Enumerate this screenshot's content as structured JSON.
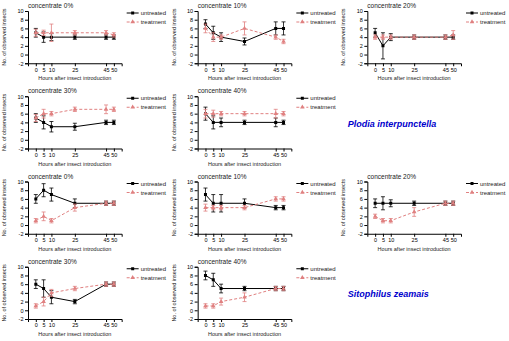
{
  "chart_data": [
    {
      "type": "line",
      "title": "concentrate 0%",
      "x_label": "Hours after insect introduction",
      "y_label": "No. of observed insects",
      "x": [
        0,
        5,
        10,
        25,
        45,
        50
      ],
      "xlim": [
        -5,
        55
      ],
      "xticks": [
        0,
        5,
        10,
        25,
        45,
        50
      ],
      "ylim": [
        -2,
        10
      ],
      "yticks": [
        -2,
        0,
        2,
        4,
        6,
        8,
        10
      ],
      "grid": false,
      "legend": "upper right",
      "series": [
        {
          "name": "untreated",
          "color": "#000000",
          "marker": "square",
          "line_style": "solid",
          "values": [
            5,
            4,
            4,
            4,
            4,
            4
          ],
          "errors": [
            1.0,
            1.2,
            0.8,
            0.5,
            0.5,
            0.5
          ]
        },
        {
          "name": "treatment",
          "color": "#e08080",
          "marker": "triangle",
          "line_style": "dashed",
          "values": [
            5,
            5,
            5,
            5,
            5,
            4.5
          ],
          "errors": [
            0.8,
            0.6,
            2.0,
            0.5,
            0.5,
            0.5
          ]
        }
      ]
    },
    {
      "type": "line",
      "title": "concentrate 10%",
      "x_label": "Hours after insect introduction",
      "y_label": "No. of observed insects",
      "x": [
        0,
        5,
        10,
        25,
        45,
        50
      ],
      "xlim": [
        -5,
        55
      ],
      "xticks": [
        0,
        5,
        10,
        25,
        45,
        50
      ],
      "ylim": [
        -2,
        10
      ],
      "yticks": [
        -2,
        0,
        2,
        4,
        6,
        8,
        10
      ],
      "grid": false,
      "legend": "upper right",
      "series": [
        {
          "name": "untreated",
          "color": "#000000",
          "marker": "square",
          "line_style": "solid",
          "values": [
            7,
            5,
            4,
            3,
            6,
            6
          ],
          "errors": [
            1.0,
            1.5,
            1.0,
            0.8,
            1.5,
            1.5
          ]
        },
        {
          "name": "treatment",
          "color": "#e08080",
          "marker": "triangle",
          "line_style": "dashed",
          "values": [
            6,
            4,
            4,
            6,
            4,
            3
          ],
          "errors": [
            1.0,
            1.0,
            0.5,
            1.5,
            0.5,
            0.5
          ]
        }
      ]
    },
    {
      "type": "line",
      "title": "concentrate 20%",
      "x_label": "Hours after insect introduction",
      "y_label": "No. of observed insects",
      "x": [
        0,
        5,
        10,
        25,
        45,
        50
      ],
      "xlim": [
        -5,
        55
      ],
      "xticks": [
        0,
        5,
        10,
        25,
        45,
        50
      ],
      "ylim": [
        -2,
        10
      ],
      "yticks": [
        -2,
        0,
        2,
        4,
        6,
        8,
        10
      ],
      "grid": false,
      "legend": "upper right",
      "series": [
        {
          "name": "untreated",
          "color": "#000000",
          "marker": "square",
          "line_style": "solid",
          "values": [
            5,
            2,
            4,
            4,
            4,
            4
          ],
          "errors": [
            1.0,
            3.0,
            0.8,
            0.5,
            0.5,
            0.5
          ]
        },
        {
          "name": "treatment",
          "color": "#e08080",
          "marker": "triangle",
          "line_style": "dashed",
          "values": [
            4,
            4,
            4,
            4,
            4,
            4.5
          ],
          "errors": [
            0.5,
            0.5,
            0.5,
            0.5,
            0.5,
            1.0
          ]
        }
      ]
    },
    {
      "type": "line",
      "title": "concentrate 30%",
      "x_label": "Hours after insect introduction",
      "y_label": "No. of observed insects",
      "x": [
        0,
        5,
        10,
        25,
        45,
        50
      ],
      "xlim": [
        -5,
        55
      ],
      "xticks": [
        0,
        5,
        10,
        25,
        45,
        50
      ],
      "ylim": [
        -2,
        10
      ],
      "yticks": [
        -2,
        0,
        2,
        4,
        6,
        8,
        10
      ],
      "grid": false,
      "legend": "upper right",
      "series": [
        {
          "name": "untreated",
          "color": "#000000",
          "marker": "square",
          "line_style": "solid",
          "values": [
            5,
            4,
            3,
            3,
            4,
            4
          ],
          "errors": [
            1.0,
            1.5,
            1.2,
            0.8,
            0.5,
            0.5
          ]
        },
        {
          "name": "treatment",
          "color": "#e08080",
          "marker": "triangle",
          "line_style": "dashed",
          "values": [
            5,
            6,
            6,
            7,
            7,
            7
          ],
          "errors": [
            0.8,
            1.0,
            0.5,
            0.5,
            1.0,
            0.5
          ]
        }
      ]
    },
    {
      "type": "line",
      "title": "concentrate 40%",
      "x_label": "Hours after insect introduction",
      "y_label": "No. of observed insects",
      "x": [
        0,
        5,
        10,
        25,
        45,
        50
      ],
      "xlim": [
        -5,
        55
      ],
      "xticks": [
        0,
        5,
        10,
        25,
        45,
        50
      ],
      "ylim": [
        -2,
        10
      ],
      "yticks": [
        -2,
        0,
        2,
        4,
        6,
        8,
        10
      ],
      "grid": false,
      "legend": "upper right",
      "series": [
        {
          "name": "untreated",
          "color": "#000000",
          "marker": "square",
          "line_style": "solid",
          "values": [
            6,
            4,
            4,
            4,
            4,
            4
          ],
          "errors": [
            1.5,
            1.5,
            1.0,
            0.5,
            1.0,
            0.5
          ]
        },
        {
          "name": "treatment",
          "color": "#e08080",
          "marker": "triangle",
          "line_style": "dashed",
          "values": [
            6,
            6,
            6,
            6,
            6,
            6
          ],
          "errors": [
            1.0,
            0.8,
            0.5,
            0.5,
            1.0,
            0.5
          ]
        }
      ],
      "annotations": [
        {
          "text": "Plodia interpunctella",
          "color": "#0000cc"
        }
      ]
    },
    {
      "type": "line",
      "title": "concentrate 0%",
      "x_label": "Hours after insect introduction",
      "y_label": "No. of observed insects",
      "x": [
        0,
        5,
        10,
        25,
        45,
        50
      ],
      "xlim": [
        -5,
        55
      ],
      "xticks": [
        0,
        5,
        10,
        25,
        45,
        50
      ],
      "ylim": [
        -2,
        10
      ],
      "yticks": [
        -2,
        0,
        2,
        4,
        6,
        8,
        10
      ],
      "grid": false,
      "legend": "upper right",
      "series": [
        {
          "name": "untreated",
          "color": "#000000",
          "marker": "square",
          "line_style": "solid",
          "values": [
            6,
            8,
            7,
            5,
            5,
            5
          ],
          "errors": [
            1.0,
            1.5,
            1.5,
            1.0,
            0.5,
            0.5
          ]
        },
        {
          "name": "treatment",
          "color": "#e08080",
          "marker": "triangle",
          "line_style": "dashed",
          "values": [
            1,
            2,
            1,
            4,
            5,
            5
          ],
          "errors": [
            0.5,
            1.0,
            0.5,
            0.8,
            0.5,
            0.5
          ]
        }
      ]
    },
    {
      "type": "line",
      "title": "concentrate 10%",
      "x_label": "Hours after insect introduction",
      "y_label": "No. of observed insects",
      "x": [
        0,
        5,
        10,
        25,
        45,
        50
      ],
      "xlim": [
        -5,
        55
      ],
      "xticks": [
        0,
        5,
        10,
        25,
        45,
        50
      ],
      "ylim": [
        -2,
        10
      ],
      "yticks": [
        -2,
        0,
        2,
        4,
        6,
        8,
        10
      ],
      "grid": false,
      "legend": "upper right",
      "series": [
        {
          "name": "untreated",
          "color": "#000000",
          "marker": "square",
          "line_style": "solid",
          "values": [
            7,
            5,
            5,
            5,
            4,
            4
          ],
          "errors": [
            1.5,
            2.0,
            2.0,
            1.0,
            0.5,
            0.5
          ]
        },
        {
          "name": "treatment",
          "color": "#e08080",
          "marker": "triangle",
          "line_style": "dashed",
          "values": [
            4,
            4,
            4,
            4,
            6,
            6
          ],
          "errors": [
            0.8,
            0.5,
            0.5,
            0.5,
            0.5,
            0.5
          ]
        }
      ]
    },
    {
      "type": "line",
      "title": "concentrate 20%",
      "x_label": "Hours after insect introduction",
      "y_label": "No. of observed insects",
      "x": [
        0,
        5,
        10,
        25,
        45,
        50
      ],
      "xlim": [
        -5,
        55
      ],
      "xticks": [
        0,
        5,
        10,
        25,
        45,
        50
      ],
      "ylim": [
        -2,
        10
      ],
      "yticks": [
        -2,
        0,
        2,
        4,
        6,
        8,
        10
      ],
      "grid": false,
      "legend": "upper right",
      "series": [
        {
          "name": "untreated",
          "color": "#000000",
          "marker": "square",
          "line_style": "solid",
          "values": [
            5,
            5,
            5,
            5,
            5,
            5
          ],
          "errors": [
            1.0,
            1.5,
            0.8,
            0.5,
            0.5,
            0.5
          ]
        },
        {
          "name": "treatment",
          "color": "#e08080",
          "marker": "triangle",
          "line_style": "dashed",
          "values": [
            2,
            1,
            1,
            3,
            5,
            5
          ],
          "errors": [
            0.5,
            0.5,
            0.5,
            1.0,
            0.5,
            0.5
          ]
        }
      ]
    },
    {
      "type": "line",
      "title": "concentrate 30%",
      "x_label": "Hours after insect introduction",
      "y_label": "No. of observed insects",
      "x": [
        0,
        5,
        10,
        25,
        45,
        50
      ],
      "xlim": [
        -5,
        55
      ],
      "xticks": [
        0,
        5,
        10,
        25,
        45,
        50
      ],
      "ylim": [
        -2,
        10
      ],
      "yticks": [
        -2,
        0,
        2,
        4,
        6,
        8,
        10
      ],
      "grid": false,
      "legend": "upper right",
      "series": [
        {
          "name": "untreated",
          "color": "#000000",
          "marker": "square",
          "line_style": "solid",
          "values": [
            6,
            5,
            3,
            2,
            6,
            6
          ],
          "errors": [
            1.0,
            2.0,
            1.5,
            0.5,
            0.5,
            0.5
          ]
        },
        {
          "name": "treatment",
          "color": "#e08080",
          "marker": "triangle",
          "line_style": "dashed",
          "values": [
            1,
            2,
            4,
            5,
            6,
            6
          ],
          "errors": [
            0.5,
            1.0,
            0.8,
            0.5,
            0.5,
            0.5
          ]
        }
      ]
    },
    {
      "type": "line",
      "title": "concentrate 40%",
      "x_label": "Hours after insect introduction",
      "y_label": "No. of observed insects",
      "x": [
        0,
        5,
        10,
        25,
        45,
        50
      ],
      "xlim": [
        -5,
        55
      ],
      "xticks": [
        0,
        5,
        10,
        25,
        45,
        50
      ],
      "ylim": [
        -2,
        10
      ],
      "yticks": [
        -2,
        0,
        2,
        4,
        6,
        8,
        10
      ],
      "grid": false,
      "legend": "upper right",
      "series": [
        {
          "name": "untreated",
          "color": "#000000",
          "marker": "square",
          "line_style": "solid",
          "values": [
            8,
            7,
            5,
            5,
            5,
            5
          ],
          "errors": [
            1.0,
            1.5,
            1.0,
            0.5,
            0.5,
            0.5
          ]
        },
        {
          "name": "treatment",
          "color": "#e08080",
          "marker": "triangle",
          "line_style": "dashed",
          "values": [
            1,
            1,
            2,
            3,
            5,
            5
          ],
          "errors": [
            0.5,
            0.5,
            0.8,
            1.0,
            0.5,
            0.5
          ]
        }
      ],
      "annotations": [
        {
          "text": "Sitophilus zeamais",
          "color": "#0000cc"
        }
      ]
    }
  ]
}
